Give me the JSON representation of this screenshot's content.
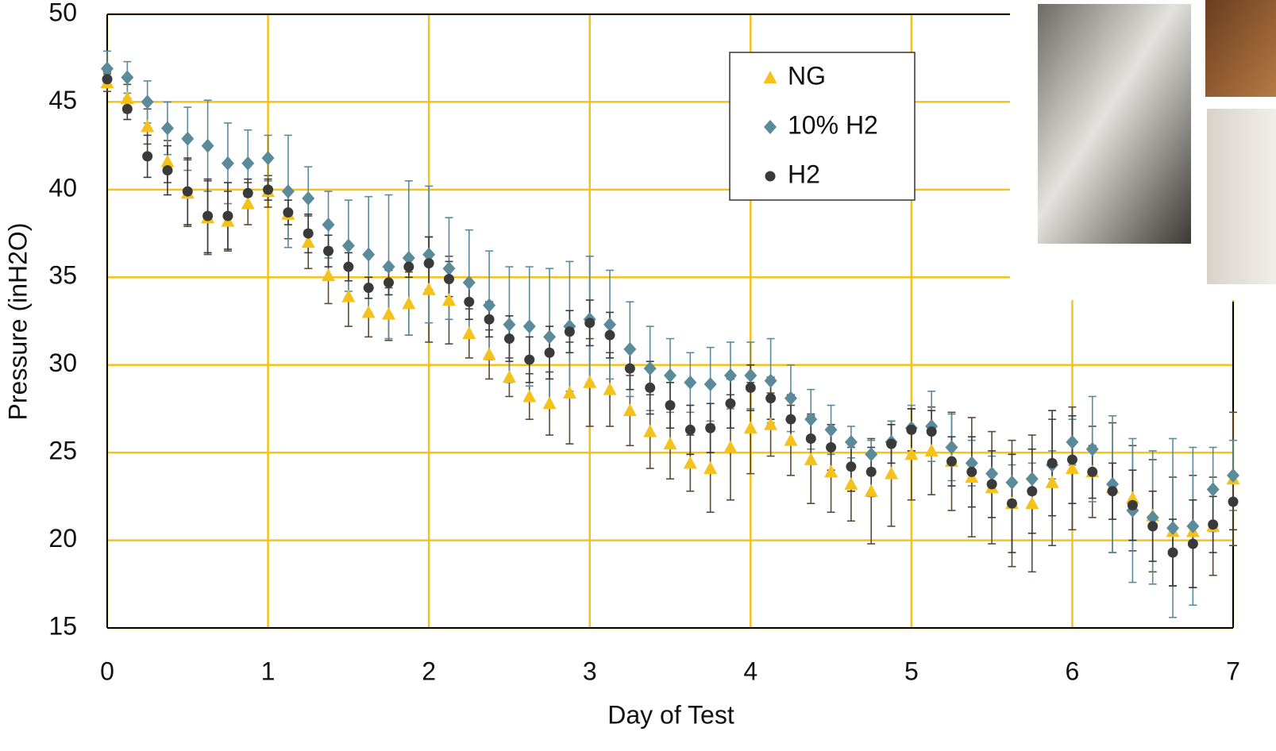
{
  "chart_data": {
    "type": "scatter",
    "xlabel": "Day of Test",
    "ylabel": "Pressure (inH2O)",
    "x": [
      0,
      0.125,
      0.25,
      0.375,
      0.5,
      0.625,
      0.75,
      0.875,
      1,
      1.125,
      1.25,
      1.375,
      1.5,
      1.625,
      1.75,
      1.875,
      2,
      2.125,
      2.25,
      2.375,
      2.5,
      2.625,
      2.75,
      2.875,
      3,
      3.125,
      3.25,
      3.375,
      3.5,
      3.625,
      3.75,
      3.875,
      4,
      4.125,
      4.25,
      4.375,
      4.5,
      4.625,
      4.75,
      4.875,
      5,
      5.125,
      5.25,
      5.375,
      5.5,
      5.625,
      5.75,
      5.875,
      6,
      6.125,
      6.25,
      6.375,
      6.5,
      6.625,
      6.75,
      6.875,
      7
    ],
    "series": [
      {
        "name": "NG",
        "color": "#f5c21b",
        "error_color": "#5a4a36",
        "marker": "triangle",
        "values": [
          46.1,
          45.2,
          43.6,
          41.6,
          39.8,
          38.4,
          38.2,
          39.2,
          39.9,
          38.6,
          37.0,
          35.1,
          33.9,
          33.0,
          32.9,
          33.5,
          34.3,
          33.7,
          31.8,
          30.6,
          29.3,
          28.2,
          27.8,
          28.4,
          29.0,
          28.6,
          27.4,
          26.2,
          25.5,
          24.4,
          24.1,
          25.3,
          26.4,
          26.6,
          25.7,
          24.6,
          23.9,
          23.2,
          22.8,
          23.8,
          24.9,
          25.1,
          24.5,
          23.6,
          23.0,
          22.1,
          22.1,
          23.3,
          24.1,
          23.9,
          23.0,
          22.4,
          21.4,
          20.5,
          20.5,
          20.8,
          23.5
        ],
        "errors": [
          0.5,
          0.8,
          1.0,
          1.2,
          1.9,
          2.1,
          1.7,
          1.2,
          0.9,
          1.4,
          1.5,
          1.6,
          1.7,
          1.4,
          1.5,
          1.8,
          3.0,
          2.5,
          1.4,
          1.4,
          1.1,
          1.3,
          1.8,
          2.9,
          2.5,
          2.1,
          2.0,
          2.1,
          2.0,
          1.6,
          2.5,
          3.0,
          2.6,
          1.8,
          2.0,
          2.5,
          2.3,
          2.1,
          3.0,
          3.0,
          2.6,
          2.5,
          2.8,
          3.4,
          3.2,
          3.6,
          3.9,
          3.6,
          3.5,
          2.6,
          3.7,
          3.0,
          3.2,
          3.1,
          3.2,
          2.8,
          3.8
        ]
      },
      {
        "name": "10% H2",
        "color": "#5b8b9b",
        "error_color": "#5b8b9b",
        "marker": "diamond",
        "values": [
          46.9,
          46.4,
          45.0,
          43.5,
          42.9,
          42.5,
          41.5,
          41.5,
          41.8,
          39.9,
          39.5,
          38.0,
          36.8,
          36.3,
          35.6,
          36.1,
          36.3,
          35.5,
          34.7,
          33.4,
          32.3,
          32.2,
          31.6,
          32.2,
          32.6,
          32.3,
          30.9,
          29.8,
          29.4,
          29.0,
          28.9,
          29.4,
          29.4,
          29.1,
          28.1,
          26.9,
          26.3,
          25.6,
          24.9,
          25.6,
          26.4,
          26.5,
          25.3,
          24.4,
          23.8,
          23.3,
          23.5,
          24.3,
          25.6,
          25.2,
          23.2,
          21.7,
          21.3,
          20.7,
          20.8,
          22.9,
          23.7
        ],
        "errors": [
          1.0,
          0.9,
          1.2,
          1.5,
          1.8,
          2.6,
          2.3,
          1.9,
          1.3,
          3.2,
          1.8,
          1.9,
          2.6,
          3.3,
          4.1,
          4.4,
          3.9,
          2.9,
          3.0,
          3.1,
          3.3,
          3.4,
          3.9,
          3.7,
          3.6,
          3.1,
          2.7,
          2.4,
          2.1,
          1.7,
          2.1,
          1.9,
          1.9,
          2.4,
          1.9,
          1.7,
          1.4,
          0.9,
          0.8,
          1.2,
          1.3,
          2.0,
          1.9,
          1.3,
          1.0,
          1.0,
          0.9,
          0.8,
          1.3,
          3.0,
          3.9,
          4.1,
          3.8,
          5.1,
          4.5,
          2.4,
          2.0
        ]
      },
      {
        "name": "H2",
        "color": "#3a3a3a",
        "error_color": "#3a3a3a",
        "marker": "circle",
        "values": [
          46.3,
          44.6,
          41.9,
          41.1,
          39.9,
          38.5,
          38.5,
          39.8,
          40.0,
          38.7,
          37.5,
          36.5,
          35.6,
          34.4,
          34.7,
          35.6,
          35.8,
          34.9,
          33.6,
          32.6,
          31.5,
          30.3,
          30.7,
          31.9,
          32.4,
          31.7,
          29.8,
          28.7,
          27.7,
          26.3,
          26.4,
          27.8,
          28.7,
          28.1,
          26.9,
          25.8,
          25.3,
          24.2,
          23.9,
          25.5,
          26.3,
          26.2,
          24.5,
          23.9,
          23.2,
          22.1,
          22.8,
          24.4,
          24.6,
          23.9,
          22.8,
          22.0,
          20.8,
          19.3,
          19.8,
          20.9,
          22.2
        ],
        "errors": [
          0.4,
          0.6,
          1.2,
          1.4,
          1.9,
          2.1,
          1.9,
          0.8,
          0.6,
          0.7,
          1.1,
          0.9,
          0.8,
          0.6,
          0.7,
          0.6,
          1.5,
          1.0,
          1.0,
          1.0,
          1.3,
          1.3,
          1.5,
          1.2,
          1.3,
          1.3,
          1.2,
          1.5,
          1.3,
          1.4,
          1.4,
          1.4,
          1.3,
          1.2,
          1.4,
          1.4,
          1.3,
          1.4,
          1.4,
          1.1,
          1.2,
          1.2,
          1.4,
          2.0,
          1.9,
          2.8,
          2.4,
          3.0,
          2.5,
          1.5,
          1.6,
          2.0,
          2.0,
          1.9,
          2.5,
          1.6,
          1.6
        ]
      }
    ],
    "xlim": [
      0,
      7
    ],
    "xticks": [
      0,
      1,
      2,
      3,
      4,
      5,
      6,
      7
    ],
    "ylim": [
      15,
      50
    ],
    "yticks": [
      15,
      20,
      25,
      30,
      35,
      40,
      45,
      50
    ],
    "grid": true,
    "grid_color": "#f5c21b"
  }
}
